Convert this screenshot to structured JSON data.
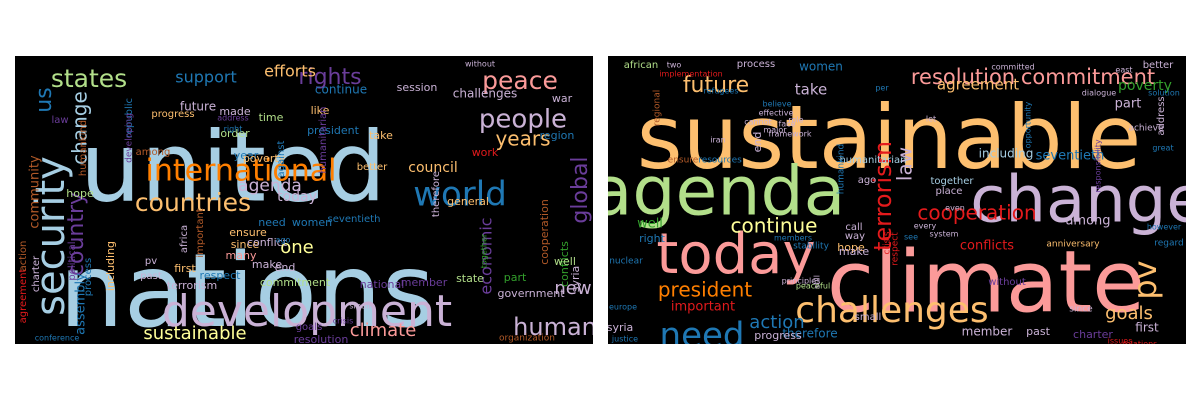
{
  "palette": {
    "background": "#000000",
    "light_blue": "#a6cee3",
    "blue": "#1f78b4",
    "light_green": "#b2df8a",
    "green": "#33a02c",
    "pink": "#fb9a99",
    "red": "#e31a1c",
    "light_orange": "#fdbf6f",
    "orange": "#ff7f00",
    "lavender": "#cab2d6",
    "purple": "#6a3d9a",
    "yellow": "#ffff99",
    "brown": "#b15928"
  },
  "wordclouds": [
    {
      "words": [
        {
          "text": "united",
          "color": "#a6cee3"
        },
        {
          "text": "nations",
          "color": "#a6cee3"
        },
        {
          "text": "development",
          "color": "#cab2d6"
        },
        {
          "text": "international",
          "color": "#ff7f00"
        },
        {
          "text": "security",
          "color": "#a6cee3"
        },
        {
          "text": "world",
          "color": "#1f78b4"
        },
        {
          "text": "countries",
          "color": "#fdbf6f"
        },
        {
          "text": "people",
          "color": "#cab2d6"
        },
        {
          "text": "peace",
          "color": "#fb9a99"
        },
        {
          "text": "rights",
          "color": "#6a3d9a"
        },
        {
          "text": "states",
          "color": "#b2df8a"
        },
        {
          "text": "human",
          "color": "#cab2d6"
        },
        {
          "text": "years",
          "color": "#fdbf6f"
        },
        {
          "text": "us",
          "color": "#1f78b4"
        },
        {
          "text": "change",
          "color": "#a6cee3"
        },
        {
          "text": "country",
          "color": "#6a3d9a"
        },
        {
          "text": "global",
          "color": "#6a3d9a"
        },
        {
          "text": "sustainable",
          "color": "#ffff99"
        },
        {
          "text": "climate",
          "color": "#fb9a99"
        },
        {
          "text": "one",
          "color": "#ffff99"
        },
        {
          "text": "new",
          "color": "#cab2d6"
        },
        {
          "text": "agenda",
          "color": "#cab2d6"
        },
        {
          "text": "economic",
          "color": "#6a3d9a"
        },
        {
          "text": "support",
          "color": "#1f78b4"
        },
        {
          "text": "efforts",
          "color": "#fdbf6f"
        },
        {
          "text": "council",
          "color": "#fdbf6f"
        },
        {
          "text": "today",
          "color": "#cab2d6"
        },
        {
          "text": "community",
          "color": "#b15928"
        },
        {
          "text": "assembly",
          "color": "#1f78b4"
        },
        {
          "text": "future",
          "color": "#cab2d6"
        },
        {
          "text": "challenges",
          "color": "#cab2d6"
        },
        {
          "text": "continue",
          "color": "#1f78b4"
        },
        {
          "text": "session",
          "color": "#cab2d6"
        },
        {
          "text": "war",
          "color": "#cab2d6"
        },
        {
          "text": "made",
          "color": "#cab2d6"
        },
        {
          "text": "order",
          "color": "#b2df8a"
        },
        {
          "text": "year",
          "color": "#1f78b4"
        },
        {
          "text": "time",
          "color": "#b2df8a"
        },
        {
          "text": "poverty",
          "color": "#fdbf6f"
        },
        {
          "text": "like",
          "color": "#fdbf6f"
        },
        {
          "text": "take",
          "color": "#fdbf6f"
        },
        {
          "text": "president",
          "color": "#1f78b4"
        },
        {
          "text": "region",
          "color": "#1f78b4"
        },
        {
          "text": "work",
          "color": "#e31a1c"
        },
        {
          "text": "cooperation",
          "color": "#b15928"
        },
        {
          "text": "conflicts",
          "color": "#33a02c"
        },
        {
          "text": "general",
          "color": "#fdbf6f"
        },
        {
          "text": "hope",
          "color": "#b2df8a"
        },
        {
          "text": "including",
          "color": "#fdbf6f"
        },
        {
          "text": "need",
          "color": "#1f78b4"
        },
        {
          "text": "women",
          "color": "#1f78b4"
        },
        {
          "text": "seventieth",
          "color": "#1f78b4"
        },
        {
          "text": "therefore",
          "color": "#cab2d6"
        },
        {
          "text": "ensure",
          "color": "#fdbf6f"
        },
        {
          "text": "since",
          "color": "#fdbf6f"
        },
        {
          "text": "many",
          "color": "#fb9a99"
        },
        {
          "text": "make",
          "color": "#cab2d6"
        },
        {
          "text": "end",
          "color": "#cab2d6"
        },
        {
          "text": "well",
          "color": "#b2df8a"
        },
        {
          "text": "part",
          "color": "#33a02c"
        },
        {
          "text": "conflict",
          "color": "#cab2d6"
        },
        {
          "text": "respect",
          "color": "#1f78b4"
        },
        {
          "text": "commitment",
          "color": "#b2df8a"
        },
        {
          "text": "first",
          "color": "#fdbf6f"
        },
        {
          "text": "terrorism",
          "color": "#cab2d6"
        },
        {
          "text": "national",
          "color": "#6a3d9a"
        },
        {
          "text": "member",
          "color": "#6a3d9a"
        },
        {
          "text": "syria",
          "color": "#cab2d6"
        },
        {
          "text": "state",
          "color": "#b2df8a"
        },
        {
          "text": "government",
          "color": "#cab2d6"
        },
        {
          "text": "organization",
          "color": "#b15928"
        },
        {
          "text": "resolution",
          "color": "#6a3d9a"
        },
        {
          "text": "goals",
          "color": "#6a3d9a"
        },
        {
          "text": "crisis",
          "color": "#6a3d9a"
        },
        {
          "text": "agreement",
          "color": "#e31a1c"
        },
        {
          "text": "conference",
          "color": "#1f78b4"
        },
        {
          "text": "action",
          "color": "#b15928"
        },
        {
          "text": "charter",
          "color": "#cab2d6"
        },
        {
          "text": "political",
          "color": "#6a3d9a"
        },
        {
          "text": "process",
          "color": "#1f78b4"
        },
        {
          "text": "pv",
          "color": "#cab2d6"
        },
        {
          "text": "past",
          "color": "#cab2d6"
        },
        {
          "text": "africa",
          "color": "#cab2d6"
        },
        {
          "text": "important",
          "color": "#b15928"
        },
        {
          "text": "among",
          "color": "#b15928"
        },
        {
          "text": "progress",
          "color": "#fdbf6f"
        },
        {
          "text": "against",
          "color": "#1f78b4"
        },
        {
          "text": "humanitarian",
          "color": "#6a3d9a"
        },
        {
          "text": "better",
          "color": "#fdbf6f"
        },
        {
          "text": "law",
          "color": "#6a3d9a"
        },
        {
          "text": "humankind",
          "color": "#b15928"
        },
        {
          "text": "republic",
          "color": "#1f78b4"
        },
        {
          "text": "developing",
          "color": "#6a3d9a"
        },
        {
          "text": "address",
          "color": "#6a3d9a"
        },
        {
          "text": "right",
          "color": "#1f78b4"
        },
        {
          "text": "without",
          "color": "#cab2d6"
        },
        {
          "text": "ago",
          "color": "#1f78b4"
        },
        {
          "text": "together",
          "color": "#33a02c"
        },
        {
          "text": "small",
          "color": "#cab2d6"
        }
      ]
    },
    {
      "words": [
        {
          "text": "sustainable",
          "color": "#fdbf6f"
        },
        {
          "text": "agenda",
          "color": "#b2df8a"
        },
        {
          "text": "change",
          "color": "#cab2d6"
        },
        {
          "text": "climate",
          "color": "#fb9a99"
        },
        {
          "text": "today",
          "color": "#fb9a99"
        },
        {
          "text": "challenges",
          "color": "#fdbf6f"
        },
        {
          "text": "cooperation",
          "color": "#e31a1c"
        },
        {
          "text": "continue",
          "color": "#ffff99"
        },
        {
          "text": "need",
          "color": "#1f78b4"
        },
        {
          "text": "president",
          "color": "#ff7f00"
        },
        {
          "text": "resolution",
          "color": "#fb9a99"
        },
        {
          "text": "commitment",
          "color": "#fb9a99"
        },
        {
          "text": "future",
          "color": "#fdbf6f"
        },
        {
          "text": "terrorism",
          "color": "#e31a1c"
        },
        {
          "text": "law",
          "color": "#cab2d6"
        },
        {
          "text": "pv",
          "color": "#fdbf6f"
        },
        {
          "text": "agreement",
          "color": "#fdbf6f"
        },
        {
          "text": "goals",
          "color": "#fdbf6f"
        },
        {
          "text": "action",
          "color": "#1f78b4"
        },
        {
          "text": "conflicts",
          "color": "#e31a1c"
        },
        {
          "text": "poverty",
          "color": "#33a02c"
        },
        {
          "text": "take",
          "color": "#cab2d6"
        },
        {
          "text": "women",
          "color": "#1f78b4"
        },
        {
          "text": "part",
          "color": "#cab2d6"
        },
        {
          "text": "among",
          "color": "#cab2d6"
        },
        {
          "text": "seventieth",
          "color": "#1f78b4"
        },
        {
          "text": "including",
          "color": "#a6cee3"
        },
        {
          "text": "together",
          "color": "#a6cee3"
        },
        {
          "text": "humanitarian",
          "color": "#a6cee3"
        },
        {
          "text": "well",
          "color": "#33a02c"
        },
        {
          "text": "hope",
          "color": "#fdbf6f"
        },
        {
          "text": "make",
          "color": "#cab2d6"
        },
        {
          "text": "important",
          "color": "#e31a1c"
        },
        {
          "text": "therefore",
          "color": "#1f78b4"
        },
        {
          "text": "member",
          "color": "#cab2d6"
        },
        {
          "text": "progress",
          "color": "#cab2d6"
        },
        {
          "text": "past",
          "color": "#cab2d6"
        },
        {
          "text": "charter",
          "color": "#6a3d9a"
        },
        {
          "text": "first",
          "color": "#cab2d6"
        },
        {
          "text": "syria",
          "color": "#cab2d6"
        },
        {
          "text": "right",
          "color": "#1f78b4"
        },
        {
          "text": "end",
          "color": "#cab2d6"
        },
        {
          "text": "african",
          "color": "#b2df8a"
        },
        {
          "text": "process",
          "color": "#cab2d6"
        },
        {
          "text": "address",
          "color": "#cab2d6"
        },
        {
          "text": "better",
          "color": "#cab2d6"
        },
        {
          "text": "way",
          "color": "#cab2d6"
        },
        {
          "text": "call",
          "color": "#cab2d6"
        },
        {
          "text": "ago",
          "color": "#cab2d6"
        },
        {
          "text": "humankind",
          "color": "#1f78b4"
        },
        {
          "text": "crisis",
          "color": "#e31a1c"
        },
        {
          "text": "respect",
          "color": "#e31a1c"
        },
        {
          "text": "without",
          "color": "#6a3d9a"
        },
        {
          "text": "small",
          "color": "#cab2d6"
        },
        {
          "text": "regional",
          "color": "#b15928"
        },
        {
          "text": "ensure",
          "color": "#b15928"
        },
        {
          "text": "resources",
          "color": "#1f78b4"
        },
        {
          "text": "stability",
          "color": "#1f78b4"
        },
        {
          "text": "members",
          "color": "#1f78b4"
        },
        {
          "text": "nuclear",
          "color": "#1f78b4"
        },
        {
          "text": "europe",
          "color": "#1f78b4"
        },
        {
          "text": "justice",
          "color": "#1f78b4"
        },
        {
          "text": "relations",
          "color": "#e31a1c"
        },
        {
          "text": "since",
          "color": "#cab2d6"
        },
        {
          "text": "issues",
          "color": "#e31a1c"
        },
        {
          "text": "anniversary",
          "color": "#fdbf6f"
        },
        {
          "text": "regard",
          "color": "#1f78b4"
        },
        {
          "text": "however",
          "color": "#1f78b4"
        },
        {
          "text": "achieve",
          "color": "#cab2d6"
        },
        {
          "text": "solution",
          "color": "#1f78b4"
        },
        {
          "text": "dialogue",
          "color": "#cab2d6"
        },
        {
          "text": "east",
          "color": "#cab2d6"
        },
        {
          "text": "great",
          "color": "#1f78b4"
        },
        {
          "text": "committed",
          "color": "#cab2d6"
        },
        {
          "text": "implementation",
          "color": "#e31a1c"
        },
        {
          "text": "refugees",
          "color": "#1f78b4"
        },
        {
          "text": "believe",
          "color": "#1f78b4"
        },
        {
          "text": "effective",
          "color": "#cab2d6"
        },
        {
          "text": "role",
          "color": "#cab2d6"
        },
        {
          "text": "framework",
          "color": "#cab2d6"
        },
        {
          "text": "opportunity",
          "color": "#1f78b4"
        },
        {
          "text": "responsibility",
          "color": "#6a3d9a"
        },
        {
          "text": "place",
          "color": "#cab2d6"
        },
        {
          "text": "even",
          "color": "#cab2d6"
        },
        {
          "text": "every",
          "color": "#cab2d6"
        },
        {
          "text": "system",
          "color": "#cab2d6"
        },
        {
          "text": "see",
          "color": "#1f78b4"
        },
        {
          "text": "principles",
          "color": "#cab2d6"
        },
        {
          "text": "peaceful",
          "color": "#b2df8a"
        },
        {
          "text": "still",
          "color": "#cab2d6"
        },
        {
          "text": "iran",
          "color": "#cab2d6"
        },
        {
          "text": "major",
          "color": "#cab2d6"
        },
        {
          "text": "cannot",
          "color": "#cab2d6"
        },
        {
          "text": "face",
          "color": "#cab2d6"
        },
        {
          "text": "let",
          "color": "#cab2d6"
        },
        {
          "text": "two",
          "color": "#cab2d6"
        },
        {
          "text": "per",
          "color": "#1f78b4"
        }
      ]
    }
  ]
}
